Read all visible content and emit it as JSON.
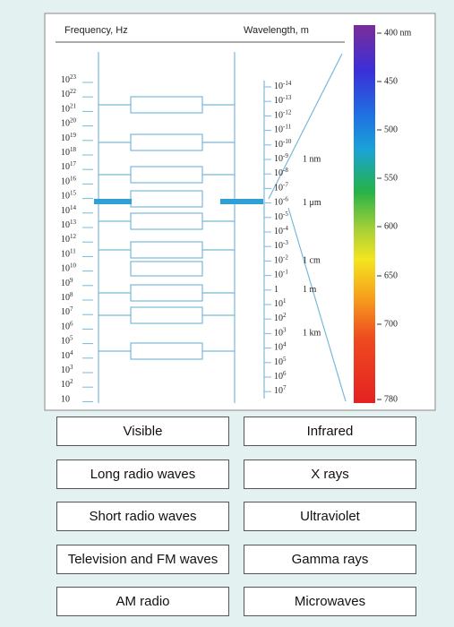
{
  "diagram": {
    "frequency_header": "Frequency, Hz",
    "wavelength_header": "Wavelength, m",
    "frequency_labels": [
      {
        "base": "10",
        "exp": "23"
      },
      {
        "base": "10",
        "exp": "22"
      },
      {
        "base": "10",
        "exp": "21"
      },
      {
        "base": "10",
        "exp": "20"
      },
      {
        "base": "10",
        "exp": "19"
      },
      {
        "base": "10",
        "exp": "18"
      },
      {
        "base": "10",
        "exp": "17"
      },
      {
        "base": "10",
        "exp": "16"
      },
      {
        "base": "10",
        "exp": "15"
      },
      {
        "base": "10",
        "exp": "14"
      },
      {
        "base": "10",
        "exp": "13"
      },
      {
        "base": "10",
        "exp": "12"
      },
      {
        "base": "10",
        "exp": "11"
      },
      {
        "base": "10",
        "exp": "10"
      },
      {
        "base": "10",
        "exp": "9"
      },
      {
        "base": "10",
        "exp": "8"
      },
      {
        "base": "10",
        "exp": "7"
      },
      {
        "base": "10",
        "exp": "6"
      },
      {
        "base": "10",
        "exp": "5"
      },
      {
        "base": "10",
        "exp": "4"
      },
      {
        "base": "10",
        "exp": "3"
      },
      {
        "base": "10",
        "exp": "2"
      },
      {
        "base": "10"
      }
    ],
    "wavelength_labels": [
      {
        "base": "10",
        "exp": "-14"
      },
      {
        "base": "10",
        "exp": "-13"
      },
      {
        "base": "10",
        "exp": "-12"
      },
      {
        "base": "10",
        "exp": "-11"
      },
      {
        "base": "10",
        "exp": "-10"
      },
      {
        "base": "10",
        "exp": "-9",
        "note": "1 nm"
      },
      {
        "base": "10",
        "exp": "-8"
      },
      {
        "base": "10",
        "exp": "-7"
      },
      {
        "base": "10",
        "exp": "-6",
        "note": "1 μm"
      },
      {
        "base": "10",
        "exp": "-5"
      },
      {
        "base": "10",
        "exp": "-4"
      },
      {
        "base": "10",
        "exp": "-3"
      },
      {
        "base": "10",
        "exp": "-2",
        "note": "1 cm"
      },
      {
        "base": "10",
        "exp": "-1"
      },
      {
        "base": "1",
        "note": "1 m"
      },
      {
        "base": "10",
        "exp": "1"
      },
      {
        "base": "10",
        "exp": "2"
      },
      {
        "base": "10",
        "exp": "3",
        "note": "1 km"
      },
      {
        "base": "10",
        "exp": "4"
      },
      {
        "base": "10",
        "exp": "5"
      },
      {
        "base": "10",
        "exp": "6"
      },
      {
        "base": "10",
        "exp": "7"
      }
    ],
    "visible_scale": [
      "400 nm",
      "450",
      "500",
      "550",
      "600",
      "650",
      "700",
      "780"
    ]
  },
  "answers": [
    [
      "Visible",
      "Infrared"
    ],
    [
      "Long radio waves",
      "X rays"
    ],
    [
      "Short radio waves",
      "Ultraviolet"
    ],
    [
      "Television and FM waves",
      "Gamma rays"
    ],
    [
      "AM radio",
      "Microwaves"
    ]
  ]
}
